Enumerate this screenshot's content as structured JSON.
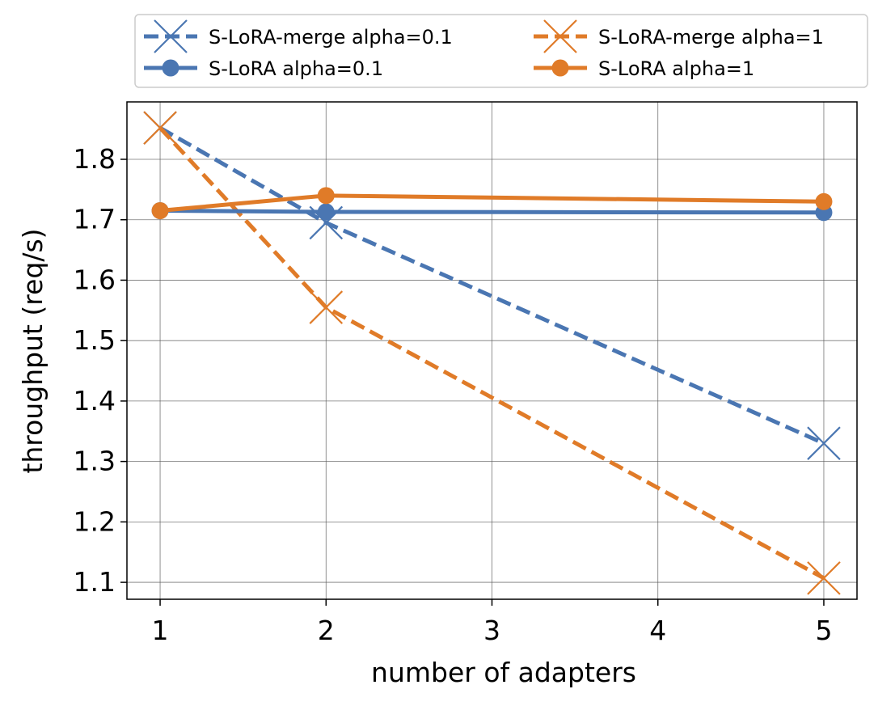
{
  "chart_data": {
    "type": "line",
    "title": "",
    "xlabel": "number of adapters",
    "ylabel": "throughput (req/s)",
    "x": [
      1,
      2,
      5
    ],
    "xticks": [
      1,
      2,
      3,
      4,
      5
    ],
    "yticks": [
      1.1,
      1.2,
      1.3,
      1.4,
      1.5,
      1.6,
      1.7,
      1.8
    ],
    "xlim": [
      0.8,
      5.2
    ],
    "ylim": [
      1.072,
      1.895
    ],
    "grid": true,
    "legend_position": "top-outside",
    "series": [
      {
        "name": "S-LoRA-merge alpha=0.1",
        "values": [
          1.852,
          1.695,
          1.33
        ],
        "color": "#4a76b2",
        "line": "dashed",
        "marker": "x"
      },
      {
        "name": "S-LoRA-merge alpha=1",
        "values": [
          1.852,
          1.555,
          1.107
        ],
        "color": "#e07b28",
        "line": "dashed",
        "marker": "x"
      },
      {
        "name": "S-LoRA alpha=0.1",
        "values": [
          1.715,
          1.713,
          1.712
        ],
        "color": "#4a76b2",
        "line": "solid",
        "marker": "circle"
      },
      {
        "name": "S-LoRA alpha=1",
        "values": [
          1.715,
          1.74,
          1.73
        ],
        "color": "#e07b28",
        "line": "solid",
        "marker": "circle"
      }
    ]
  }
}
